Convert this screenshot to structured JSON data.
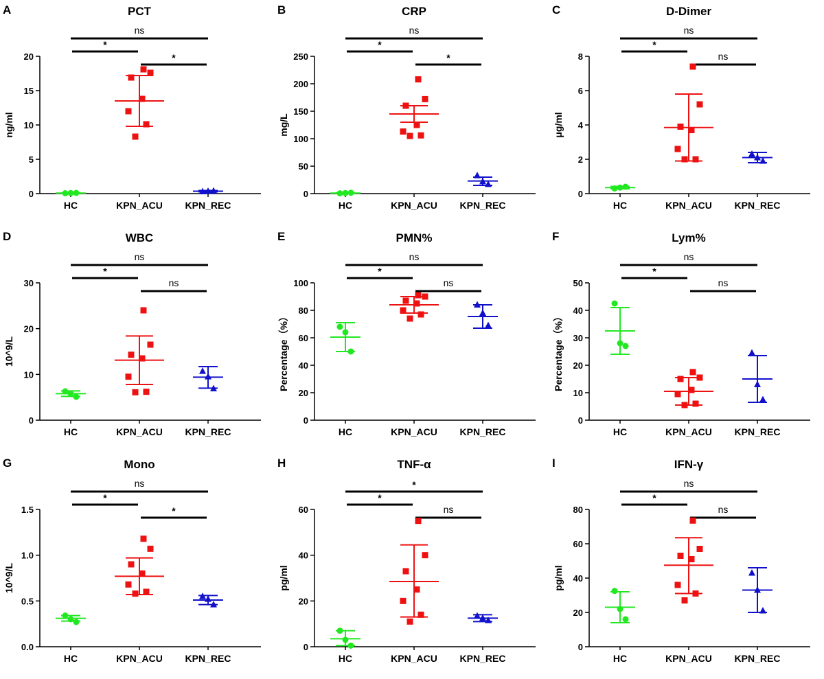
{
  "colors": {
    "HC": "#22e822",
    "KPN_ACU": "#ee1111",
    "KPN_REC": "#1111cc",
    "axis": "#000000"
  },
  "chart_data": [
    {
      "panel": "A",
      "title": "PCT",
      "type": "scatter",
      "ylabel": "ng/ml",
      "ylim": [
        0,
        20
      ],
      "yticks": [
        "0",
        "5",
        "10",
        "15",
        "20"
      ],
      "categories": [
        "HC",
        "KPN_ACU",
        "KPN_REC"
      ],
      "series": [
        {
          "name": "HC",
          "marker": "circle",
          "points": [
            0.05,
            0.08,
            0.1
          ],
          "mean": 0.08,
          "sd": [
            0.05,
            0.1
          ]
        },
        {
          "name": "KPN_ACU",
          "marker": "square",
          "points": [
            18.1,
            17.6,
            16.9,
            13.8,
            12.0,
            10.1,
            8.3
          ],
          "mean": 13.5,
          "sd": [
            9.8,
            17.2
          ]
        },
        {
          "name": "KPN_REC",
          "marker": "triangle",
          "points": [
            0.3,
            0.35,
            0.4
          ],
          "mean": 0.35,
          "sd": [
            0.25,
            0.45
          ]
        }
      ],
      "comparisons": [
        {
          "from": 0,
          "to": 2,
          "label": "ns"
        },
        {
          "from": 0,
          "to": 1,
          "label": "*"
        },
        {
          "from": 1,
          "to": 2,
          "label": "*"
        }
      ]
    },
    {
      "panel": "B",
      "title": "CRP",
      "type": "scatter",
      "ylabel": "mg/L",
      "ylim": [
        0,
        250
      ],
      "yticks": [
        "0",
        "50",
        "100",
        "150",
        "200",
        "250"
      ],
      "categories": [
        "HC",
        "KPN_ACU",
        "KPN_REC"
      ],
      "series": [
        {
          "name": "HC",
          "marker": "circle",
          "points": [
            0.5,
            1,
            1.5
          ],
          "mean": 1,
          "sd": [
            0.5,
            1.5
          ]
        },
        {
          "name": "KPN_ACU",
          "marker": "square",
          "points": [
            208,
            172,
            160,
            125,
            113,
            106,
            105
          ],
          "mean": 145,
          "sd": [
            130,
            160
          ]
        },
        {
          "name": "KPN_REC",
          "marker": "triangle",
          "points": [
            33,
            22,
            17
          ],
          "mean": 23,
          "sd": [
            15,
            30
          ]
        }
      ],
      "comparisons": [
        {
          "from": 0,
          "to": 2,
          "label": "ns"
        },
        {
          "from": 0,
          "to": 1,
          "label": "*"
        },
        {
          "from": 1,
          "to": 2,
          "label": "*"
        }
      ]
    },
    {
      "panel": "C",
      "title": "D-Dimer",
      "type": "scatter",
      "ylabel": "μg/ml",
      "ylim": [
        0,
        8
      ],
      "yticks": [
        "0",
        "2",
        "4",
        "6",
        "8"
      ],
      "categories": [
        "HC",
        "KPN_ACU",
        "KPN_REC"
      ],
      "series": [
        {
          "name": "HC",
          "marker": "circle",
          "points": [
            0.3,
            0.35,
            0.4
          ],
          "mean": 0.35,
          "sd": [
            0.28,
            0.42
          ]
        },
        {
          "name": "KPN_ACU",
          "marker": "square",
          "points": [
            7.4,
            5.2,
            3.9,
            3.7,
            2.6,
            2.0,
            2.0
          ],
          "mean": 3.85,
          "sd": [
            1.9,
            5.8
          ]
        },
        {
          "name": "KPN_REC",
          "marker": "triangle",
          "points": [
            2.3,
            2.1,
            1.9
          ],
          "mean": 2.1,
          "sd": [
            1.8,
            2.4
          ]
        }
      ],
      "comparisons": [
        {
          "from": 0,
          "to": 2,
          "label": "ns"
        },
        {
          "from": 0,
          "to": 1,
          "label": "*"
        },
        {
          "from": 1,
          "to": 2,
          "label": "ns"
        }
      ]
    },
    {
      "panel": "D",
      "title": "WBC",
      "type": "scatter",
      "ylabel": "10^9/L",
      "ylim": [
        0,
        30
      ],
      "yticks": [
        "0",
        "10",
        "20",
        "30"
      ],
      "categories": [
        "HC",
        "KPN_ACU",
        "KPN_REC"
      ],
      "series": [
        {
          "name": "HC",
          "marker": "circle",
          "points": [
            6.3,
            5.8,
            5.1
          ],
          "mean": 5.8,
          "sd": [
            5.2,
            6.4
          ]
        },
        {
          "name": "KPN_ACU",
          "marker": "square",
          "points": [
            24,
            16.5,
            14.3,
            13.5,
            9.5,
            6.2,
            6.1
          ],
          "mean": 13.1,
          "sd": [
            7.8,
            18.4
          ]
        },
        {
          "name": "KPN_REC",
          "marker": "triangle",
          "points": [
            10.7,
            9.5,
            6.9
          ],
          "mean": 9.4,
          "sd": [
            7.0,
            11.7
          ]
        }
      ],
      "comparisons": [
        {
          "from": 0,
          "to": 2,
          "label": "ns"
        },
        {
          "from": 0,
          "to": 1,
          "label": "*"
        },
        {
          "from": 1,
          "to": 2,
          "label": "ns"
        }
      ]
    },
    {
      "panel": "E",
      "title": "PMN%",
      "type": "scatter",
      "ylabel": "Percentage（%）",
      "ylim": [
        0,
        100
      ],
      "yticks": [
        "0",
        "20",
        "40",
        "60",
        "80",
        "100"
      ],
      "categories": [
        "HC",
        "KPN_ACU",
        "KPN_REC"
      ],
      "series": [
        {
          "name": "HC",
          "marker": "circle",
          "points": [
            68,
            64,
            50
          ],
          "mean": 60.5,
          "sd": [
            50,
            71
          ]
        },
        {
          "name": "KPN_ACU",
          "marker": "square",
          "points": [
            91,
            90,
            87,
            85,
            80,
            77,
            74
          ],
          "mean": 84,
          "sd": [
            78,
            90
          ]
        },
        {
          "name": "KPN_REC",
          "marker": "triangle",
          "points": [
            84,
            78,
            69
          ],
          "mean": 75.5,
          "sd": [
            67,
            84
          ]
        }
      ],
      "comparisons": [
        {
          "from": 0,
          "to": 2,
          "label": "ns"
        },
        {
          "from": 0,
          "to": 1,
          "label": "*"
        },
        {
          "from": 1,
          "to": 2,
          "label": "ns"
        }
      ]
    },
    {
      "panel": "F",
      "title": "Lym%",
      "type": "scatter",
      "ylabel": "Percentage（%）",
      "ylim": [
        0,
        50
      ],
      "yticks": [
        "0",
        "10",
        "20",
        "30",
        "40",
        "50"
      ],
      "categories": [
        "HC",
        "KPN_ACU",
        "KPN_REC"
      ],
      "series": [
        {
          "name": "HC",
          "marker": "circle",
          "points": [
            42.5,
            28,
            27
          ],
          "mean": 32.5,
          "sd": [
            24,
            41
          ]
        },
        {
          "name": "KPN_ACU",
          "marker": "square",
          "points": [
            17.5,
            15.5,
            15,
            11,
            9.5,
            6,
            5.5
          ],
          "mean": 10.5,
          "sd": [
            5.5,
            15.5
          ]
        },
        {
          "name": "KPN_REC",
          "marker": "triangle",
          "points": [
            24.5,
            13,
            7.5
          ],
          "mean": 15,
          "sd": [
            6.5,
            23.5
          ]
        }
      ],
      "comparisons": [
        {
          "from": 0,
          "to": 2,
          "label": "ns"
        },
        {
          "from": 0,
          "to": 1,
          "label": "*"
        },
        {
          "from": 1,
          "to": 2,
          "label": "ns"
        }
      ]
    },
    {
      "panel": "G",
      "title": "Mono",
      "type": "scatter",
      "ylabel": "10^9/L",
      "ylim": [
        0,
        1.5
      ],
      "yticks": [
        "0.0",
        "0.5",
        "1.0",
        "1.5"
      ],
      "categories": [
        "HC",
        "KPN_ACU",
        "KPN_REC"
      ],
      "series": [
        {
          "name": "HC",
          "marker": "circle",
          "points": [
            0.34,
            0.3,
            0.27
          ],
          "mean": 0.31,
          "sd": [
            0.28,
            0.34
          ]
        },
        {
          "name": "KPN_ACU",
          "marker": "square",
          "points": [
            1.18,
            1.07,
            0.9,
            0.8,
            0.68,
            0.6,
            0.58
          ],
          "mean": 0.77,
          "sd": [
            0.57,
            0.97
          ]
        },
        {
          "name": "KPN_REC",
          "marker": "triangle",
          "points": [
            0.55,
            0.52,
            0.46
          ],
          "mean": 0.51,
          "sd": [
            0.46,
            0.56
          ]
        }
      ],
      "comparisons": [
        {
          "from": 0,
          "to": 2,
          "label": "ns"
        },
        {
          "from": 0,
          "to": 1,
          "label": "*"
        },
        {
          "from": 1,
          "to": 2,
          "label": "*"
        }
      ]
    },
    {
      "panel": "H",
      "title": "TNF-α",
      "type": "scatter",
      "ylabel": "pg/ml",
      "ylim": [
        0,
        60
      ],
      "yticks": [
        "0",
        "20",
        "40",
        "60"
      ],
      "categories": [
        "HC",
        "KPN_ACU",
        "KPN_REC"
      ],
      "series": [
        {
          "name": "HC",
          "marker": "circle",
          "points": [
            7,
            3,
            0.5
          ],
          "mean": 3.5,
          "sd": [
            0.5,
            7
          ]
        },
        {
          "name": "KPN_ACU",
          "marker": "square",
          "points": [
            55,
            40,
            33,
            25,
            20,
            14,
            11
          ],
          "mean": 28.5,
          "sd": [
            13,
            44.5
          ]
        },
        {
          "name": "KPN_REC",
          "marker": "triangle",
          "points": [
            13.5,
            12.5,
            11.5
          ],
          "mean": 12.5,
          "sd": [
            11,
            14
          ]
        }
      ],
      "comparisons": [
        {
          "from": 0,
          "to": 2,
          "label": "*"
        },
        {
          "from": 0,
          "to": 1,
          "label": "*"
        },
        {
          "from": 1,
          "to": 2,
          "label": "ns"
        }
      ]
    },
    {
      "panel": "I",
      "title": "IFN-γ",
      "type": "scatter",
      "ylabel": "pg/ml",
      "ylim": [
        0,
        80
      ],
      "yticks": [
        "0",
        "20",
        "40",
        "60",
        "80"
      ],
      "categories": [
        "HC",
        "KPN_ACU",
        "KPN_REC"
      ],
      "series": [
        {
          "name": "HC",
          "marker": "circle",
          "points": [
            32.5,
            22,
            16
          ],
          "mean": 23,
          "sd": [
            14,
            32
          ]
        },
        {
          "name": "KPN_ACU",
          "marker": "square",
          "points": [
            73.5,
            57,
            53,
            51,
            36,
            31,
            27
          ],
          "mean": 47.5,
          "sd": [
            31,
            63.5
          ]
        },
        {
          "name": "KPN_REC",
          "marker": "triangle",
          "points": [
            43,
            33,
            21
          ],
          "mean": 33,
          "sd": [
            20,
            46
          ]
        }
      ],
      "comparisons": [
        {
          "from": 0,
          "to": 2,
          "label": "ns"
        },
        {
          "from": 0,
          "to": 1,
          "label": "*"
        },
        {
          "from": 1,
          "to": 2,
          "label": "ns"
        }
      ]
    }
  ]
}
